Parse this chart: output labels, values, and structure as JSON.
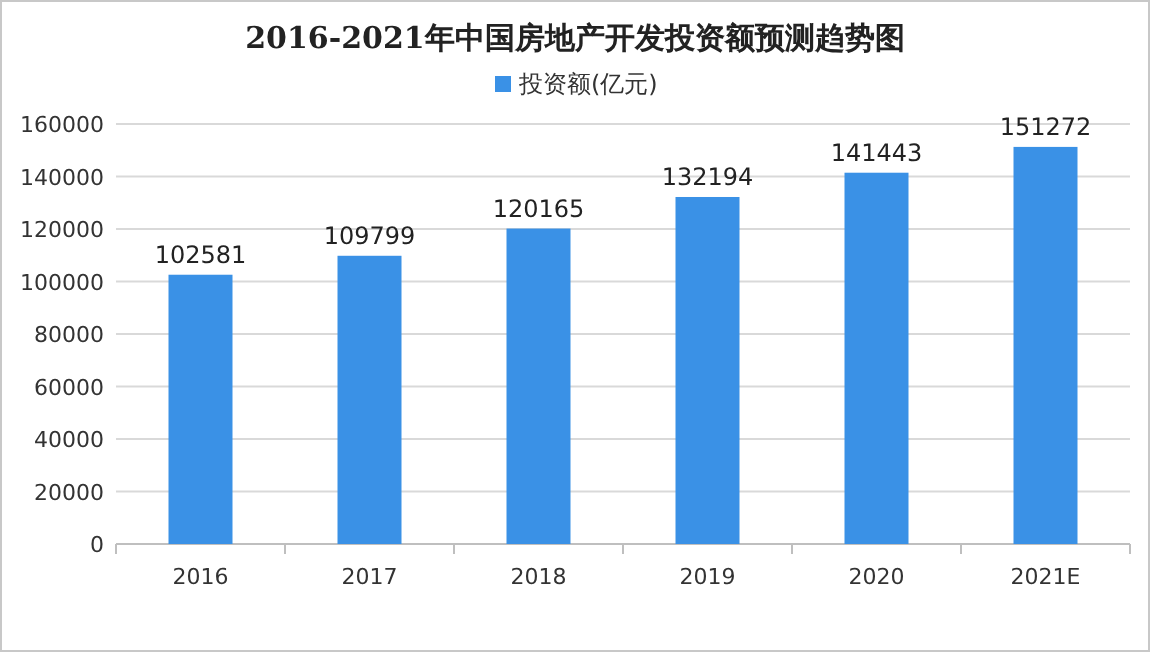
{
  "chart_data": {
    "type": "bar",
    "title": "2016-2021年中国房地产开发投资额预测趋势图",
    "categories": [
      "2016",
      "2017",
      "2018",
      "2019",
      "2020",
      "2021E"
    ],
    "series": [
      {
        "name": "投资额(亿元)",
        "color": "#3a91e6",
        "values": [
          102581,
          109799,
          120165,
          132194,
          141443,
          151272
        ]
      }
    ],
    "ylim": [
      0,
      160000
    ],
    "yticks": [
      0,
      20000,
      40000,
      60000,
      80000,
      100000,
      120000,
      140000,
      160000
    ],
    "grid": "y",
    "legend": "top",
    "data_labels": true
  }
}
